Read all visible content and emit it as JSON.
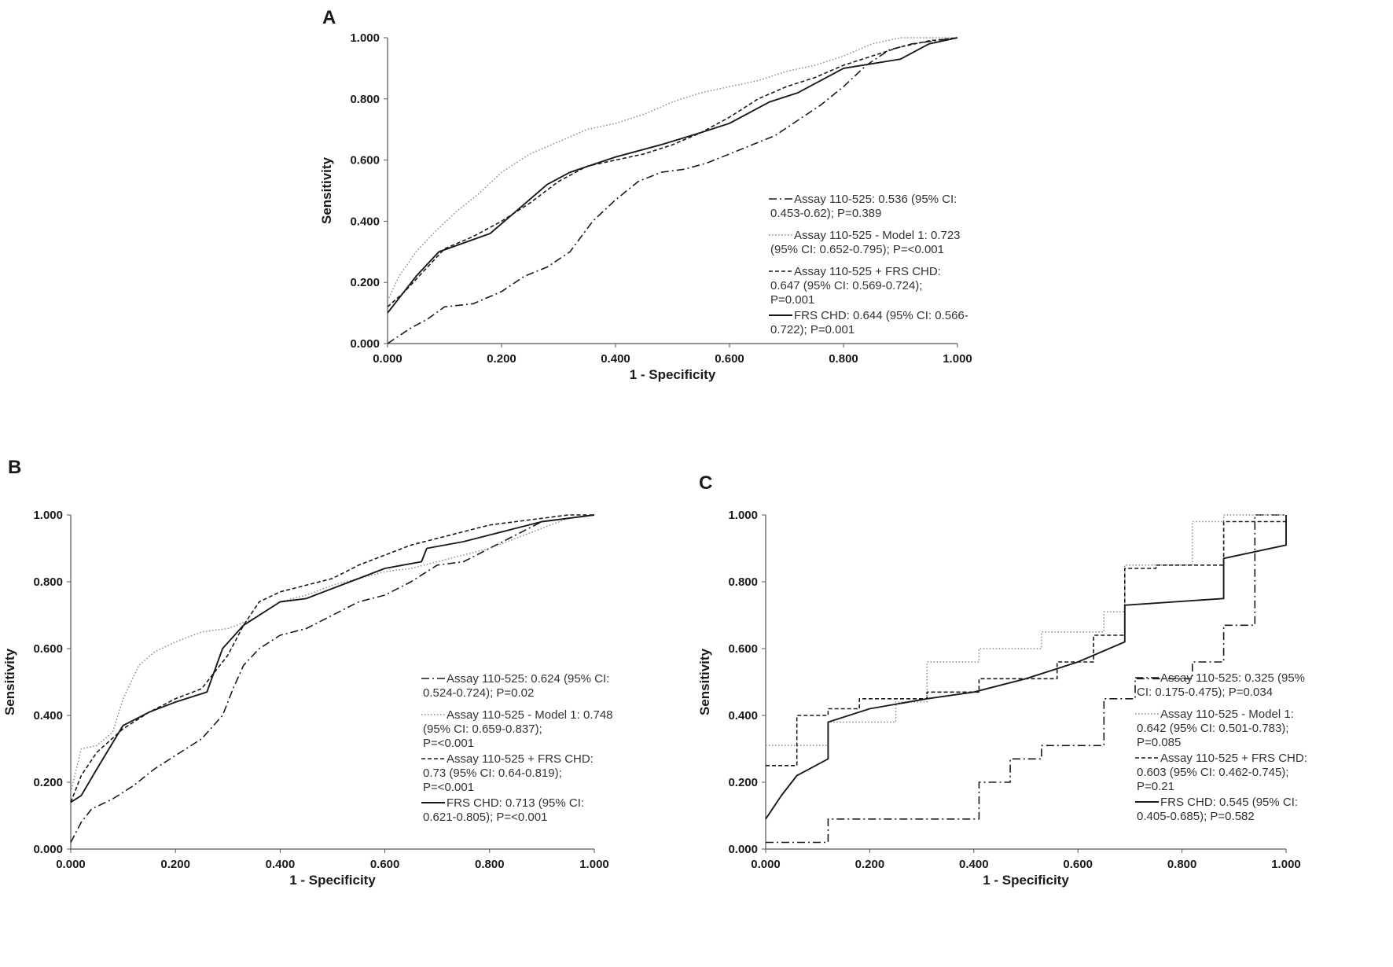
{
  "chart_data": [
    {
      "panel": "A",
      "type": "line",
      "xlabel": "1 - Specificity",
      "ylabel": "Sensitivity",
      "xlim": [
        0,
        1
      ],
      "ylim": [
        0,
        1
      ],
      "x_ticks": [
        "0.000",
        "0.200",
        "0.400",
        "0.600",
        "0.800",
        "1.000"
      ],
      "y_ticks": [
        "0.000",
        "0.200",
        "0.400",
        "0.600",
        "0.800",
        "1.000"
      ],
      "legend_position": "lower-right",
      "series": [
        {
          "name": "Assay 110-525",
          "style": "dashdot",
          "legend": [
            "Assay 110-525: 0.536 (95% CI:",
            "0.453-0.62); P=0.389"
          ],
          "x": [
            0.0,
            0.04,
            0.07,
            0.1,
            0.15,
            0.2,
            0.24,
            0.28,
            0.32,
            0.36,
            0.4,
            0.44,
            0.48,
            0.52,
            0.56,
            0.6,
            0.64,
            0.68,
            0.72,
            0.76,
            0.8,
            0.84,
            0.88,
            0.92,
            0.96,
            1.0
          ],
          "y": [
            0.0,
            0.05,
            0.08,
            0.12,
            0.13,
            0.17,
            0.22,
            0.25,
            0.3,
            0.4,
            0.47,
            0.53,
            0.56,
            0.57,
            0.59,
            0.62,
            0.65,
            0.68,
            0.73,
            0.78,
            0.84,
            0.91,
            0.96,
            0.98,
            0.99,
            1.0
          ]
        },
        {
          "name": "Assay 110-525 - Model 1",
          "style": "dotted",
          "legend": [
            "Assay 110-525 - Model 1: 0.723",
            "(95% CI: 0.652-0.795); P=<0.001"
          ],
          "x": [
            0.0,
            0.02,
            0.05,
            0.08,
            0.12,
            0.16,
            0.2,
            0.25,
            0.3,
            0.35,
            0.4,
            0.45,
            0.5,
            0.55,
            0.6,
            0.65,
            0.7,
            0.75,
            0.8,
            0.85,
            0.9,
            0.95,
            1.0
          ],
          "y": [
            0.14,
            0.22,
            0.3,
            0.36,
            0.43,
            0.49,
            0.56,
            0.62,
            0.66,
            0.7,
            0.72,
            0.75,
            0.79,
            0.82,
            0.84,
            0.86,
            0.89,
            0.91,
            0.94,
            0.98,
            1.0,
            1.0,
            1.0
          ]
        },
        {
          "name": "Assay 110-525 + FRS CHD",
          "style": "dashed",
          "legend": [
            "Assay 110-525 + FRS CHD:",
            "0.647 (95% CI: 0.569-0.724);",
            "P=0.001"
          ],
          "x": [
            0.0,
            0.03,
            0.06,
            0.1,
            0.15,
            0.2,
            0.25,
            0.3,
            0.35,
            0.4,
            0.45,
            0.5,
            0.55,
            0.6,
            0.65,
            0.7,
            0.75,
            0.8,
            0.85,
            0.9,
            0.95,
            1.0
          ],
          "y": [
            0.12,
            0.17,
            0.23,
            0.31,
            0.35,
            0.4,
            0.46,
            0.53,
            0.58,
            0.6,
            0.62,
            0.65,
            0.69,
            0.74,
            0.8,
            0.84,
            0.87,
            0.91,
            0.94,
            0.97,
            0.99,
            1.0
          ]
        },
        {
          "name": "FRS CHD",
          "style": "solid",
          "legend": [
            "FRS CHD: 0.644 (95% CI: 0.566-",
            "0.722); P=0.001"
          ],
          "x": [
            0.0,
            0.05,
            0.09,
            0.18,
            0.28,
            0.32,
            0.4,
            0.48,
            0.55,
            0.6,
            0.67,
            0.72,
            0.8,
            0.9,
            0.95,
            1.0
          ],
          "y": [
            0.1,
            0.22,
            0.3,
            0.36,
            0.52,
            0.56,
            0.61,
            0.65,
            0.69,
            0.72,
            0.79,
            0.82,
            0.9,
            0.93,
            0.98,
            1.0
          ]
        }
      ]
    },
    {
      "panel": "B",
      "type": "line",
      "xlabel": "1 - Specificity",
      "ylabel": "Sensitivity",
      "xlim": [
        0,
        1
      ],
      "ylim": [
        0,
        1
      ],
      "x_ticks": [
        "0.000",
        "0.200",
        "0.400",
        "0.600",
        "0.800",
        "1.000"
      ],
      "y_ticks": [
        "0.000",
        "0.200",
        "0.400",
        "0.600",
        "0.800",
        "1.000"
      ],
      "legend_position": "lower-right",
      "series": [
        {
          "name": "Assay 110-525",
          "style": "dashdot",
          "legend": [
            "Assay 110-525: 0.624 (95% CI:",
            "0.524-0.724); P=0.02"
          ],
          "x": [
            0.0,
            0.02,
            0.04,
            0.08,
            0.12,
            0.16,
            0.2,
            0.25,
            0.29,
            0.31,
            0.33,
            0.36,
            0.4,
            0.45,
            0.5,
            0.55,
            0.6,
            0.65,
            0.7,
            0.75,
            0.8,
            0.85,
            0.9,
            1.0
          ],
          "y": [
            0.02,
            0.08,
            0.12,
            0.15,
            0.19,
            0.24,
            0.28,
            0.33,
            0.4,
            0.48,
            0.55,
            0.6,
            0.64,
            0.66,
            0.7,
            0.74,
            0.76,
            0.8,
            0.85,
            0.86,
            0.9,
            0.94,
            0.98,
            1.0
          ]
        },
        {
          "name": "Assay 110-525 - Model 1",
          "style": "dotted",
          "legend": [
            "Assay 110-525 - Model 1: 0.748",
            "(95% CI: 0.659-0.837);",
            "P=<0.001"
          ],
          "x": [
            0.0,
            0.02,
            0.05,
            0.08,
            0.1,
            0.13,
            0.16,
            0.2,
            0.25,
            0.3,
            0.35,
            0.4,
            0.45,
            0.5,
            0.55,
            0.6,
            0.65,
            0.7,
            0.75,
            0.8,
            0.85,
            0.9,
            0.95,
            1.0
          ],
          "y": [
            0.17,
            0.3,
            0.31,
            0.35,
            0.45,
            0.55,
            0.59,
            0.62,
            0.65,
            0.66,
            0.69,
            0.74,
            0.76,
            0.79,
            0.81,
            0.83,
            0.84,
            0.86,
            0.88,
            0.9,
            0.93,
            0.96,
            0.99,
            1.0
          ]
        },
        {
          "name": "Assay 110-525 + FRS CHD",
          "style": "dashed",
          "legend": [
            "Assay 110-525 + FRS CHD:",
            "0.73 (95% CI: 0.64-0.819);",
            "P=<0.001"
          ],
          "x": [
            0.0,
            0.02,
            0.05,
            0.1,
            0.15,
            0.2,
            0.25,
            0.3,
            0.33,
            0.36,
            0.4,
            0.45,
            0.5,
            0.55,
            0.6,
            0.65,
            0.7,
            0.75,
            0.8,
            0.85,
            0.9,
            0.95,
            1.0
          ],
          "y": [
            0.14,
            0.22,
            0.29,
            0.36,
            0.41,
            0.45,
            0.48,
            0.58,
            0.67,
            0.74,
            0.77,
            0.79,
            0.81,
            0.85,
            0.88,
            0.91,
            0.93,
            0.95,
            0.97,
            0.98,
            0.99,
            1.0,
            1.0
          ]
        },
        {
          "name": "FRS CHD",
          "style": "solid",
          "legend": [
            "FRS CHD: 0.713 (95% CI:",
            "0.621-0.805); P=<0.001"
          ],
          "x": [
            0.0,
            0.02,
            0.05,
            0.1,
            0.15,
            0.2,
            0.26,
            0.29,
            0.33,
            0.4,
            0.45,
            0.5,
            0.55,
            0.6,
            0.67,
            0.68,
            0.75,
            0.8,
            0.85,
            0.9,
            0.95,
            1.0
          ],
          "y": [
            0.14,
            0.16,
            0.24,
            0.37,
            0.41,
            0.44,
            0.47,
            0.6,
            0.67,
            0.74,
            0.75,
            0.78,
            0.81,
            0.84,
            0.86,
            0.9,
            0.92,
            0.94,
            0.96,
            0.98,
            0.99,
            1.0
          ]
        }
      ]
    },
    {
      "panel": "C",
      "type": "line",
      "xlabel": "1 - Specificity",
      "ylabel": "Sensitivity",
      "xlim": [
        0,
        1
      ],
      "ylim": [
        0,
        1
      ],
      "x_ticks": [
        "0.000",
        "0.200",
        "0.400",
        "0.600",
        "0.800",
        "1.000"
      ],
      "y_ticks": [
        "0.000",
        "0.200",
        "0.400",
        "0.600",
        "0.800",
        "1.000"
      ],
      "legend_position": "lower-right",
      "series": [
        {
          "name": "Assay 110-525",
          "style": "dashdot",
          "legend": [
            "Assay 110-525: 0.325 (95%",
            "CI: 0.175-0.475); P=0.034"
          ],
          "x": [
            0.0,
            0.12,
            0.12,
            0.41,
            0.41,
            0.47,
            0.47,
            0.53,
            0.53,
            0.65,
            0.65,
            0.71,
            0.71,
            0.82,
            0.82,
            0.88,
            0.88,
            0.94,
            0.94,
            1.0
          ],
          "y": [
            0.02,
            0.02,
            0.09,
            0.09,
            0.2,
            0.2,
            0.27,
            0.27,
            0.31,
            0.31,
            0.45,
            0.45,
            0.51,
            0.51,
            0.56,
            0.56,
            0.67,
            0.67,
            1.0,
            1.0
          ]
        },
        {
          "name": "Assay 110-525 - Model 1",
          "style": "dotted",
          "legend": [
            "Assay 110-525 - Model 1:",
            "0.642 (95% CI: 0.501-0.783);",
            "P=0.085"
          ],
          "x": [
            0.0,
            0.12,
            0.12,
            0.25,
            0.25,
            0.31,
            0.31,
            0.41,
            0.41,
            0.53,
            0.53,
            0.65,
            0.65,
            0.69,
            0.69,
            0.82,
            0.82,
            0.88,
            0.88,
            1.0
          ],
          "y": [
            0.31,
            0.31,
            0.38,
            0.38,
            0.44,
            0.44,
            0.56,
            0.56,
            0.6,
            0.6,
            0.65,
            0.65,
            0.71,
            0.71,
            0.85,
            0.85,
            0.98,
            0.98,
            1.0,
            1.0
          ]
        },
        {
          "name": "Assay 110-525 + FRS CHD",
          "style": "dashed",
          "legend": [
            "Assay 110-525 + FRS CHD:",
            "0.603 (95% CI: 0.462-0.745);",
            "P=0.21"
          ],
          "x": [
            0.0,
            0.06,
            0.06,
            0.12,
            0.12,
            0.18,
            0.18,
            0.31,
            0.31,
            0.41,
            0.41,
            0.56,
            0.56,
            0.63,
            0.63,
            0.69,
            0.69,
            0.75,
            0.75,
            0.88,
            0.88,
            1.0
          ],
          "y": [
            0.25,
            0.25,
            0.4,
            0.4,
            0.42,
            0.42,
            0.45,
            0.45,
            0.47,
            0.47,
            0.51,
            0.51,
            0.56,
            0.56,
            0.64,
            0.64,
            0.84,
            0.84,
            0.85,
            0.85,
            0.98,
            0.98
          ]
        },
        {
          "name": "FRS CHD",
          "style": "solid",
          "legend": [
            "FRS CHD: 0.545 (95% CI:",
            "0.405-0.685); P=0.582"
          ],
          "x": [
            0.0,
            0.03,
            0.06,
            0.12,
            0.12,
            0.2,
            0.31,
            0.4,
            0.5,
            0.6,
            0.69,
            0.69,
            0.88,
            0.88,
            1.0,
            1.0
          ],
          "y": [
            0.09,
            0.16,
            0.22,
            0.27,
            0.38,
            0.42,
            0.45,
            0.47,
            0.51,
            0.56,
            0.62,
            0.73,
            0.75,
            0.87,
            0.91,
            1.0
          ]
        }
      ]
    }
  ]
}
